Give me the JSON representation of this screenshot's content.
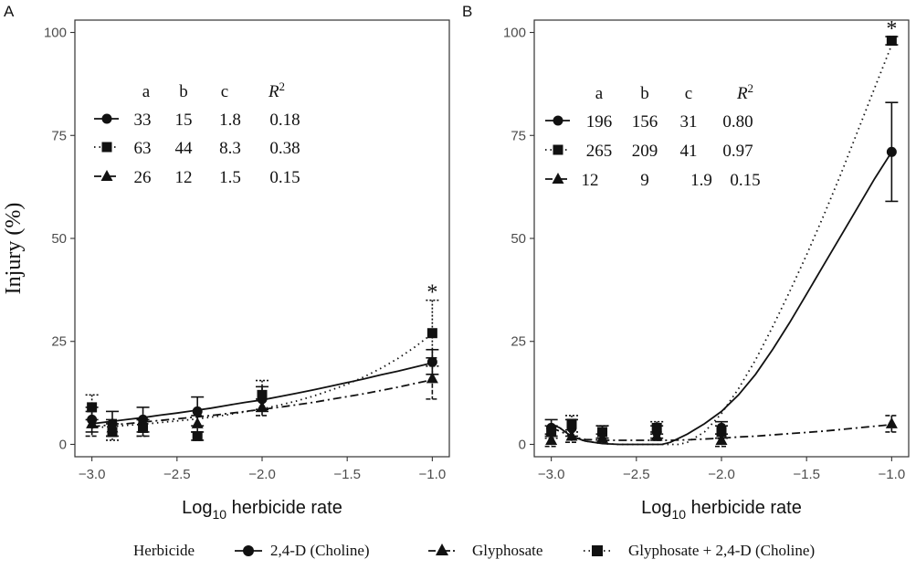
{
  "chart_data": {
    "ylabel": "Injury (%)",
    "legend": {
      "title": "Herbicide",
      "placement": "bottom",
      "entries": [
        {
          "name": "2,4-D (Choline)",
          "marker": "circle",
          "linestyle": "solid"
        },
        {
          "name": "Glyphosate",
          "marker": "triangle",
          "linestyle": "dashdot"
        },
        {
          "name": "Glyphosate + 2,4-D (Choline)",
          "marker": "square",
          "linestyle": "dotted"
        }
      ]
    },
    "panels": [
      {
        "type": "scatter",
        "label": "A",
        "xlabel_main": "Log",
        "xlabel_sub": "10",
        "xlabel_rest": " herbicide rate",
        "xlim": [
          -3.1,
          -0.9
        ],
        "ylim": [
          -3,
          103
        ],
        "xticks": [
          -3.0,
          -2.5,
          -2.0,
          -1.5,
          -1.0
        ],
        "xtick_labels": [
          "−3.0",
          "−2.5",
          "−2.0",
          "−1.5",
          "−1.0"
        ],
        "yticks": [
          0,
          25,
          50,
          75,
          100
        ],
        "ytick_labels": [
          "0",
          "25",
          "50",
          "75",
          "100"
        ],
        "grid": false,
        "table": {
          "headers": [
            "a",
            "b",
            "c",
            "R",
            "2"
          ],
          "rows": [
            [
              "33",
              "15",
              "1.8",
              "0.18"
            ],
            [
              "63",
              "44",
              "8.3",
              "0.38"
            ],
            [
              "26",
              "12",
              "1.5",
              "0.15"
            ]
          ]
        },
        "annotations": [
          {
            "text": "*",
            "x": -1.0,
            "y": 37
          }
        ],
        "series": [
          {
            "name": "2,4-D (Choline)",
            "x": [
              -3.0,
              -2.88,
              -2.7,
              -2.38,
              -2.0,
              -1.0
            ],
            "y": [
              6,
              5,
              6,
              8,
              11,
              20
            ],
            "err": [
              3,
              3,
              3,
              3.5,
              3,
              3
            ],
            "curve_x": [
              -3.0,
              -2.9,
              -2.8,
              -2.7,
              -2.6,
              -2.5,
              -2.4,
              -2.3,
              -2.2,
              -2.1,
              -2.0,
              -1.9,
              -1.8,
              -1.7,
              -1.6,
              -1.5,
              -1.4,
              -1.3,
              -1.2,
              -1.1,
              -1.0
            ],
            "curve_y": [
              5.0,
              5.5,
              6.0,
              6.5,
              7.1,
              7.6,
              8.2,
              8.8,
              9.5,
              10.2,
              10.8,
              11.6,
              12.4,
              13.2,
              14.1,
              15.0,
              15.9,
              16.9,
              17.8,
              18.8,
              19.8
            ]
          },
          {
            "name": "Glyphosate + 2,4-D (Choline)",
            "x": [
              -3.0,
              -2.88,
              -2.7,
              -2.38,
              -2.0,
              -1.0
            ],
            "y": [
              9,
              3,
              4,
              2,
              12,
              27
            ],
            "err": [
              3,
              2,
              2,
              1,
              3.5,
              8
            ],
            "curve_x": [
              -3.0,
              -2.9,
              -2.8,
              -2.7,
              -2.6,
              -2.5,
              -2.4,
              -2.3,
              -2.2,
              -2.1,
              -2.0,
              -1.9,
              -1.8,
              -1.7,
              -1.6,
              -1.5,
              -1.4,
              -1.3,
              -1.2,
              -1.1,
              -1.0
            ],
            "curve_y": [
              4.0,
              4.3,
              4.6,
              4.9,
              5.3,
              5.7,
              6.1,
              6.6,
              7.2,
              7.9,
              8.6,
              9.5,
              10.5,
              11.7,
              13.1,
              14.6,
              16.4,
              18.5,
              20.9,
              23.7,
              26.9
            ]
          },
          {
            "name": "Glyphosate",
            "x": [
              -3.0,
              -2.88,
              -2.7,
              -2.38,
              -2.0,
              -1.0
            ],
            "y": [
              5,
              4,
              4,
              5,
              9,
              16
            ],
            "err": [
              3,
              2,
              2,
              2,
              2,
              5
            ],
            "curve_x": [
              -3.0,
              -2.9,
              -2.8,
              -2.7,
              -2.6,
              -2.5,
              -2.4,
              -2.3,
              -2.2,
              -2.1,
              -2.0,
              -1.9,
              -1.8,
              -1.7,
              -1.6,
              -1.5,
              -1.4,
              -1.3,
              -1.2,
              -1.1,
              -1.0
            ],
            "curve_y": [
              4.3,
              4.7,
              5.0,
              5.4,
              5.8,
              6.2,
              6.6,
              7.0,
              7.5,
              8.0,
              8.5,
              9.0,
              9.6,
              10.2,
              10.9,
              11.6,
              12.3,
              13.1,
              13.9,
              14.8,
              15.7
            ]
          }
        ]
      },
      {
        "type": "scatter",
        "label": "B",
        "xlabel_main": "Log",
        "xlabel_sub": "10",
        "xlabel_rest": " herbicide rate",
        "xlim": [
          -3.1,
          -0.9
        ],
        "ylim": [
          -3,
          103
        ],
        "xticks": [
          -3.0,
          -2.5,
          -2.0,
          -1.5,
          -1.0
        ],
        "xtick_labels": [
          "−3.0",
          "−2.5",
          "−2.0",
          "−1.5",
          "−1.0"
        ],
        "yticks": [
          0,
          25,
          50,
          75,
          100
        ],
        "ytick_labels": [
          "0",
          "25",
          "50",
          "75",
          "100"
        ],
        "grid": false,
        "table": {
          "headers": [
            "a",
            "b",
            "c",
            "R",
            "2"
          ],
          "rows": [
            [
              "196",
              "156",
              "31",
              "0.80"
            ],
            [
              "265",
              "209",
              "41",
              "0.97"
            ],
            [
              "12",
              "9",
              "1.9",
              "0.15"
            ]
          ]
        },
        "annotations": [
          {
            "text": "*",
            "x": -1.0,
            "y": 101
          }
        ],
        "series": [
          {
            "name": "2,4-D (Choline)",
            "x": [
              -3.0,
              -2.88,
              -2.7,
              -2.38,
              -2.0,
              -1.0
            ],
            "y": [
              4,
              4,
              3,
              3,
              4,
              71
            ],
            "err": [
              2,
              2,
              1.5,
              1.5,
              1.5,
              12
            ],
            "curve_x": [
              -3.0,
              -2.95,
              -2.9,
              -2.85,
              -2.8,
              -2.7,
              -2.6,
              -2.5,
              -2.4,
              -2.35,
              -2.3,
              -2.2,
              -2.1,
              -2.0,
              -1.9,
              -1.8,
              -1.7,
              -1.6,
              -1.5,
              -1.4,
              -1.3,
              -1.2,
              -1.1,
              -1.0
            ],
            "curve_y": [
              5.0,
              4.0,
              2.5,
              1.5,
              0.8,
              0.2,
              0,
              0,
              0,
              0,
              0.5,
              2.5,
              5.0,
              8.0,
              12.0,
              17.0,
              23.0,
              29.5,
              36.5,
              43.5,
              50.5,
              57.5,
              64.5,
              71.0
            ]
          },
          {
            "name": "Glyphosate + 2,4-D (Choline)",
            "x": [
              -3.0,
              -2.88,
              -2.7,
              -2.38,
              -2.0,
              -1.0
            ],
            "y": [
              3,
              5,
              3,
              4,
              3,
              98
            ],
            "err": [
              1.5,
              2,
              1.5,
              1.5,
              1.5,
              1
            ],
            "curve_x": [
              -3.0,
              -2.95,
              -2.9,
              -2.85,
              -2.8,
              -2.7,
              -2.6,
              -2.5,
              -2.4,
              -2.3,
              -2.25,
              -2.2,
              -2.1,
              -2.0,
              -1.9,
              -1.8,
              -1.7,
              -1.6,
              -1.5,
              -1.4,
              -1.3,
              -1.2,
              -1.1,
              -1.0
            ],
            "curve_y": [
              5.0,
              4.0,
              2.5,
              1.5,
              0.8,
              0.2,
              0,
              0,
              0,
              0,
              0,
              0.5,
              3.0,
              7.5,
              13.5,
              20.5,
              28.5,
              37.0,
              46.0,
              55.5,
              65.5,
              76.0,
              86.5,
              97.0
            ]
          },
          {
            "name": "Glyphosate",
            "x": [
              -3.0,
              -2.88,
              -2.7,
              -2.38,
              -2.0,
              -1.0
            ],
            "y": [
              1,
              2,
              1.5,
              2,
              1,
              5
            ],
            "err": [
              1.5,
              1.5,
              1,
              1,
              1.5,
              2
            ],
            "curve_x": [
              -3.0,
              -2.95,
              -2.9,
              -2.85,
              -2.8,
              -2.7,
              -2.6,
              -2.5,
              -2.4,
              -2.3,
              -2.2,
              -2.1,
              -2.0,
              -1.9,
              -1.8,
              -1.7,
              -1.6,
              -1.5,
              -1.4,
              -1.3,
              -1.2,
              -1.1,
              -1.0
            ],
            "curve_y": [
              4.0,
              3.2,
              2.3,
              1.6,
              1.2,
              1.0,
              1.0,
              1.0,
              1.0,
              1.0,
              1.1,
              1.3,
              1.5,
              1.8,
              2.0,
              2.3,
              2.6,
              2.9,
              3.2,
              3.6,
              4.0,
              4.4,
              4.8
            ]
          }
        ]
      }
    ]
  }
}
